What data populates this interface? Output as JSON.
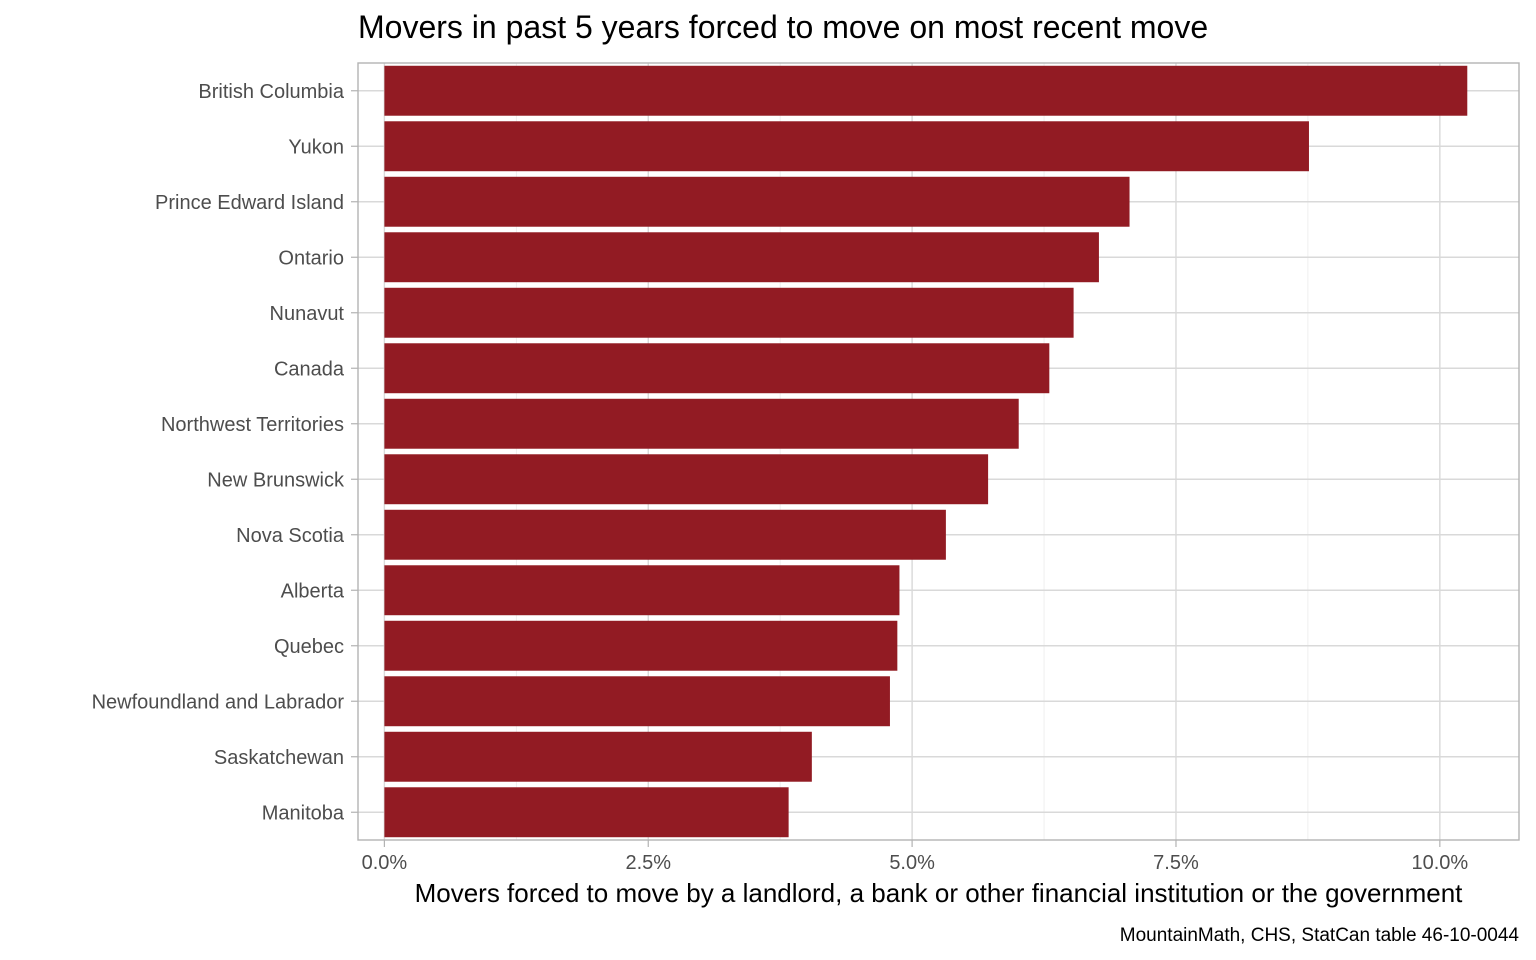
{
  "chart_data": {
    "type": "bar",
    "orientation": "horizontal",
    "title": "Movers in past 5 years forced to move on most recent move",
    "xlabel": "Movers forced to move by a landlord, a bank or other financial institution or the government",
    "ylabel": "",
    "caption": "MountainMath, CHS, StatCan table 46-10-0044",
    "categories": [
      "British Columbia",
      "Yukon",
      "Prince Edward Island",
      "Ontario",
      "Nunavut",
      "Canada",
      "Northwest Territories",
      "New Brunswick",
      "Nova Scotia",
      "Alberta",
      "Quebec",
      "Newfoundland and Labrador",
      "Saskatchewan",
      "Manitoba"
    ],
    "values": [
      10.26,
      8.76,
      7.06,
      6.77,
      6.53,
      6.3,
      6.01,
      5.72,
      5.32,
      4.88,
      4.86,
      4.79,
      4.05,
      3.83
    ],
    "value_unit": "%",
    "xlim": [
      -0.25,
      10.75
    ],
    "x_ticks": [
      0,
      2.5,
      5,
      7.5,
      10
    ],
    "x_tick_labels": [
      "0.0%",
      "2.5%",
      "5.0%",
      "7.5%",
      "10.0%"
    ],
    "grid": true,
    "legend": "none",
    "bar_color": "#921b23"
  }
}
